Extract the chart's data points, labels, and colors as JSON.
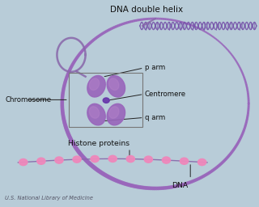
{
  "figsize": [
    3.2,
    2.56
  ],
  "dpi": 100,
  "labels": {
    "dna_double_helix": "DNA double helix",
    "chromosome": "Chromosome",
    "p_arm": "p arm",
    "centromere": "Centromere",
    "q_arm": "q arm",
    "histone_proteins": "Histone proteins",
    "dna": "DNA",
    "credit": "U.S. National Library of Medicine"
  },
  "colors": {
    "background_top": "#c5d8e4",
    "background_bot": "#a8c4d4",
    "purple_strand": "#8866aa",
    "purple_helix_line": "#7755aa",
    "purple_thick": "#9966bb",
    "pink_bead": "#ee88bb",
    "chromosome_light": "#bb88cc",
    "chromosome_mid": "#9966bb",
    "chromosome_dark": "#6633aa",
    "box_outline": "#777777",
    "label_line": "#222222",
    "text": "#111111",
    "credit_text": "#555566"
  }
}
